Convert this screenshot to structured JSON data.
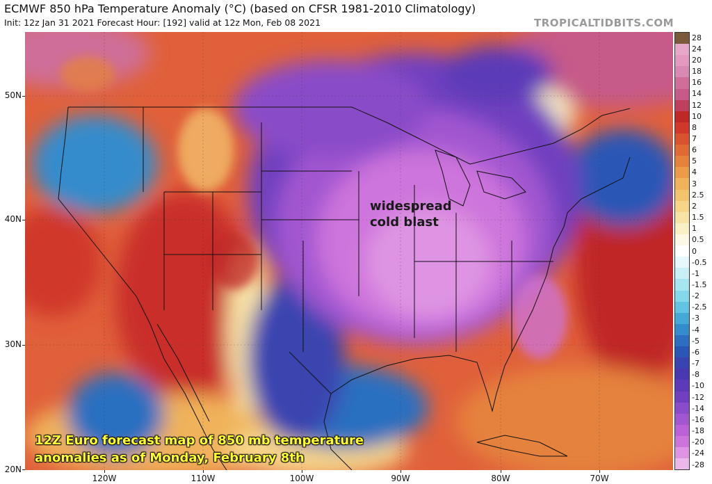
{
  "header": {
    "title": "ECMWF 850 hPa Temperature Anomaly (°C) (based on CFSR 1981-2010 Climatology)",
    "subtitle": "Init: 12z Jan 31 2021   Forecast Hour: [192]   valid at 12z Mon, Feb 08 2021",
    "brand": "TROPICALTIDBITS.COM"
  },
  "axes": {
    "lat_labels": [
      "50N",
      "40N",
      "30N",
      "20N"
    ],
    "lon_labels": [
      "120W",
      "110W",
      "100W",
      "90W",
      "80W",
      "70W"
    ]
  },
  "colorbar": {
    "labels": [
      "28",
      "24",
      "20",
      "18",
      "16",
      "14",
      "12",
      "10",
      "8",
      "7",
      "6",
      "5",
      "4",
      "3",
      "2.5",
      "2",
      "1.5",
      "1",
      "0.5",
      "0",
      "-0.5",
      "-1",
      "-1.5",
      "-2",
      "-2.5",
      "-3",
      "-4",
      "-5",
      "-6",
      "-7",
      "-8",
      "-10",
      "-12",
      "-14",
      "-16",
      "-18",
      "-20",
      "-24",
      "-28"
    ],
    "colors": [
      "#7b5a3c",
      "#e6a8c8",
      "#e39ac0",
      "#d98ab4",
      "#cf6e98",
      "#c65a88",
      "#bf3f5e",
      "#c02828",
      "#d0382a",
      "#d9532e",
      "#e06a34",
      "#e5823c",
      "#ec9c48",
      "#f0b25a",
      "#f3c46e",
      "#f6d588",
      "#f8e3a6",
      "#faf0c6",
      "#fdf8e6",
      "#ffffff",
      "#e6f8fb",
      "#c8f0f6",
      "#a6e6f0",
      "#84d8ea",
      "#62c4e2",
      "#45a8d8",
      "#358ccc",
      "#2c6fc0",
      "#2a56b6",
      "#3a44b0",
      "#4a38b0",
      "#5c3ab8",
      "#7040c0",
      "#8a4cc8",
      "#a256d0",
      "#bb62d8",
      "#cd74dc",
      "#de94e2",
      "#eab8ea"
    ]
  },
  "annotations": {
    "cold_blast_line1": "widespread",
    "cold_blast_line2": "cold blast",
    "caption_line1": "12Z Euro forecast map of 850 mb temperature",
    "caption_line2": "anomalies as of Monday, February 8th"
  }
}
